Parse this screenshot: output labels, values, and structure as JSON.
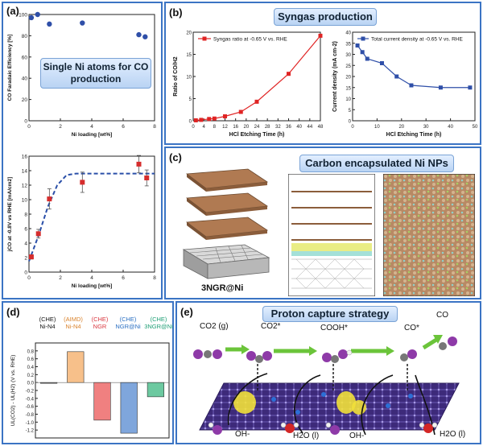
{
  "panel_a": {
    "label": "(a)",
    "inset_text": "Single Ni atoms for CO production"
  },
  "panel_b": {
    "label": "(b)",
    "title": "Syngas production"
  },
  "panel_c": {
    "label": "(c)",
    "title": "Carbon encapsulated Ni NPs",
    "structure_label": "3NGR@Ni"
  },
  "panel_d": {
    "label": "(d)",
    "header_groups": [
      {
        "method": "(CHE)",
        "name": "Ni-N4",
        "color": "#111111"
      },
      {
        "method": "(AIMD)",
        "name": "Ni-N4",
        "color": "#d9822b"
      },
      {
        "method": "(CHE)",
        "name": "NGR",
        "color": "#d9363e"
      },
      {
        "method": "(CHE)",
        "name": "NGR@Ni",
        "color": "#2a6fc2"
      },
      {
        "method": "(CHE)",
        "name": "3NGR@Ni",
        "color": "#1d9e74"
      }
    ]
  },
  "panel_e": {
    "label": "(e)",
    "title": "Proton capture strategy",
    "species": [
      "CO2 (g)",
      "CO2*",
      "COOH*",
      "CO*",
      "CO"
    ],
    "bottom_labels": [
      "OH-",
      "H2O (l)",
      "OH-",
      "H2O (l)"
    ]
  },
  "chart_data": [
    {
      "id": "a-top",
      "type": "scatter",
      "xlabel": "Ni loading [wt%]",
      "ylabel": "CO Faradaic Efficiency [%]",
      "xlim": [
        0,
        8
      ],
      "ylim": [
        0,
        100
      ],
      "xticks": [
        0,
        2,
        4,
        6,
        8
      ],
      "yticks": [
        0,
        20,
        40,
        60,
        80,
        100
      ],
      "x": [
        0.15,
        0.55,
        1.3,
        3.4,
        7.0,
        7.4
      ],
      "y": [
        97,
        100,
        91,
        92,
        81,
        79
      ],
      "color": "#2f4fa8"
    },
    {
      "id": "a-bottom",
      "type": "scatter",
      "xlabel": "Ni loading [wt%]",
      "ylabel": "jCO at -0.8V vs RHE [mA/cm2]",
      "xlim": [
        0,
        8
      ],
      "ylim": [
        0,
        16
      ],
      "xticks": [
        0,
        2,
        4,
        6,
        8
      ],
      "yticks": [
        0,
        2,
        4,
        6,
        8,
        10,
        12,
        14,
        16
      ],
      "x": [
        0.15,
        0.6,
        1.3,
        3.4,
        7.0,
        7.5
      ],
      "y": [
        2.1,
        5.3,
        10.1,
        12.4,
        14.9,
        13.0
      ],
      "err": [
        0.3,
        0.6,
        1.4,
        1.4,
        1.2,
        1.1
      ],
      "fit_x": [
        0,
        0.6,
        1.2,
        1.8,
        2.4,
        3.0,
        8
      ],
      "fit_y": [
        1.5,
        5.0,
        9.0,
        12.0,
        13.4,
        13.6,
        13.6
      ],
      "color": "#d62d2d"
    },
    {
      "id": "b-left",
      "type": "line",
      "legend": "Syngas ratio at -0.65 V vs. RHE",
      "xlabel": "HCl Etching Time (h)",
      "ylabel": "Ratio of CO/H2",
      "xlim": [
        0,
        48
      ],
      "ylim": [
        0,
        20
      ],
      "xticks": [
        0,
        4,
        8,
        12,
        16,
        20,
        24,
        28,
        32,
        36,
        40,
        44,
        48
      ],
      "yticks": [
        0,
        5,
        10,
        15,
        20
      ],
      "x": [
        1,
        3,
        6,
        8,
        12,
        18,
        24,
        36,
        48
      ],
      "y": [
        0.1,
        0.2,
        0.4,
        0.5,
        1.0,
        2.0,
        4.3,
        10.6,
        19.2
      ],
      "color": "#e02424"
    },
    {
      "id": "b-right",
      "type": "line",
      "legend": "Total current density at -0.65 V vs. RHE",
      "xlabel": "HCl Etching Time (h)",
      "ylabel": "Current density (mA cm-2)",
      "xlim": [
        0,
        50
      ],
      "ylim": [
        0,
        40
      ],
      "xticks": [
        0,
        10,
        20,
        30,
        40,
        50
      ],
      "yticks": [
        0,
        5,
        10,
        15,
        20,
        25,
        30,
        35,
        40
      ],
      "x": [
        2,
        4,
        6,
        12,
        18,
        24,
        36,
        48
      ],
      "y": [
        34,
        31,
        28,
        26,
        20,
        16,
        15,
        15
      ],
      "color": "#2f4fa8"
    },
    {
      "id": "d",
      "type": "bar",
      "ylabel": "UL(CO2) - UL(H2) (V vs. RHE)",
      "ylim": [
        -1.4,
        1.0
      ],
      "yticks": [
        -1.2,
        -1.0,
        -0.8,
        -0.6,
        -0.4,
        -0.2,
        0.0,
        0.2,
        0.4,
        0.6,
        0.8
      ],
      "categories": [
        "Ni-N4 (CHE)",
        "Ni-N4 (AIMD)",
        "NGR",
        "NGR@Ni",
        "3NGR@Ni"
      ],
      "values": [
        -0.01,
        0.78,
        -0.95,
        -1.28,
        -0.36
      ],
      "colors": [
        "#888888",
        "#f7c08a",
        "#f08080",
        "#7fa6dc",
        "#6cc9a0"
      ]
    }
  ]
}
